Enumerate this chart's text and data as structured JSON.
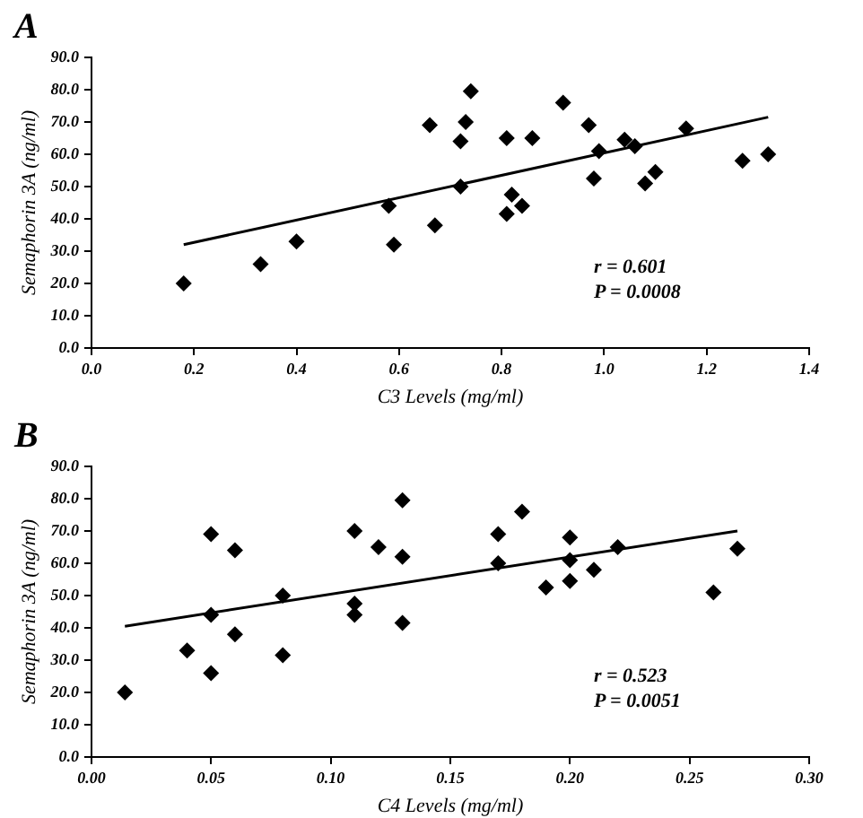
{
  "chart_data": [
    {
      "type": "scatter",
      "title": "A",
      "xlabel": "C3 Levels (mg/ml)",
      "ylabel": "Semaphorin 3A (ng/ml)",
      "legend": false,
      "grid": false,
      "marker": "diamond",
      "xlim": [
        0,
        1.4
      ],
      "xticks": [
        {
          "value": 0,
          "label": "0.0"
        },
        {
          "value": 0.2,
          "label": "0.2"
        },
        {
          "value": 0.4,
          "label": "0.4"
        },
        {
          "value": 0.6,
          "label": "0.6"
        },
        {
          "value": 0.8,
          "label": "0.8"
        },
        {
          "value": 1,
          "label": "1.0"
        },
        {
          "value": 1.2,
          "label": "1.2"
        },
        {
          "value": 1.4,
          "label": "1.4"
        }
      ],
      "ylim": [
        0,
        90
      ],
      "yticks": [
        {
          "value": 0,
          "label": "0.0"
        },
        {
          "value": 10,
          "label": "10.0"
        },
        {
          "value": 20,
          "label": "20.0"
        },
        {
          "value": 30,
          "label": "30.0"
        },
        {
          "value": 40,
          "label": "40.0"
        },
        {
          "value": 50,
          "label": "50.0"
        },
        {
          "value": 60,
          "label": "60.0"
        },
        {
          "value": 70,
          "label": "70.0"
        },
        {
          "value": 80,
          "label": "80.0"
        },
        {
          "value": 90,
          "label": "90.0"
        }
      ],
      "series": [
        {
          "color": "#000000",
          "x": [
            0.18,
            0.33,
            0.4,
            0.58,
            0.59,
            0.66,
            0.67,
            0.72,
            0.72,
            0.73,
            0.74,
            0.81,
            0.81,
            0.82,
            0.84,
            0.86,
            0.92,
            0.97,
            0.98,
            0.99,
            1.04,
            1.06,
            1.08,
            1.1,
            1.16,
            1.27,
            1.32
          ],
          "values": [
            20,
            26,
            33,
            44,
            32,
            69,
            38,
            64,
            50,
            70,
            79.5,
            65,
            41.5,
            47.5,
            44,
            65,
            76,
            69,
            52.5,
            61,
            64.5,
            62.5,
            51,
            54.5,
            68,
            58,
            60
          ]
        },
        {
          "type": "line",
          "color": "#000000",
          "marker": "none",
          "x": [
            0.18,
            1.32
          ],
          "values": [
            32,
            71.5
          ]
        }
      ],
      "annotations": [
        "r = 0.601",
        "P = 0.0008"
      ]
    },
    {
      "type": "scatter",
      "title": "B",
      "xlabel": "C4 Levels (mg/ml)",
      "ylabel": "Semaphorin 3A (ng/ml)",
      "legend": false,
      "grid": false,
      "marker": "diamond",
      "xlim": [
        0,
        0.3
      ],
      "xticks": [
        {
          "value": 0,
          "label": "0.00"
        },
        {
          "value": 0.05,
          "label": "0.05"
        },
        {
          "value": 0.1,
          "label": "0.10"
        },
        {
          "value": 0.15,
          "label": "0.15"
        },
        {
          "value": 0.2,
          "label": "0.20"
        },
        {
          "value": 0.25,
          "label": "0.25"
        },
        {
          "value": 0.3,
          "label": "0.30"
        }
      ],
      "ylim": [
        0,
        90
      ],
      "yticks": [
        {
          "value": 0,
          "label": "0.0"
        },
        {
          "value": 10,
          "label": "10.0"
        },
        {
          "value": 20,
          "label": "20.0"
        },
        {
          "value": 30,
          "label": "30.0"
        },
        {
          "value": 40,
          "label": "40.0"
        },
        {
          "value": 50,
          "label": "50.0"
        },
        {
          "value": 60,
          "label": "60.0"
        },
        {
          "value": 70,
          "label": "70.0"
        },
        {
          "value": 80,
          "label": "80.0"
        },
        {
          "value": 90,
          "label": "90.0"
        }
      ],
      "series": [
        {
          "color": "#000000",
          "x": [
            0.014,
            0.04,
            0.05,
            0.05,
            0.05,
            0.06,
            0.06,
            0.08,
            0.08,
            0.11,
            0.11,
            0.11,
            0.12,
            0.13,
            0.13,
            0.13,
            0.17,
            0.17,
            0.18,
            0.19,
            0.2,
            0.2,
            0.2,
            0.21,
            0.22,
            0.26,
            0.27
          ],
          "values": [
            20,
            33,
            26,
            44,
            69,
            64,
            38,
            50,
            31.5,
            70,
            47.5,
            44,
            65,
            79.5,
            62,
            41.5,
            69,
            60,
            76,
            52.5,
            68,
            61,
            54.5,
            58,
            65,
            51,
            64.5
          ]
        },
        {
          "type": "line",
          "color": "#000000",
          "marker": "none",
          "x": [
            0.014,
            0.27
          ],
          "values": [
            40.5,
            70
          ]
        }
      ],
      "annotations": [
        "r = 0.523",
        "P = 0.0051"
      ]
    }
  ]
}
